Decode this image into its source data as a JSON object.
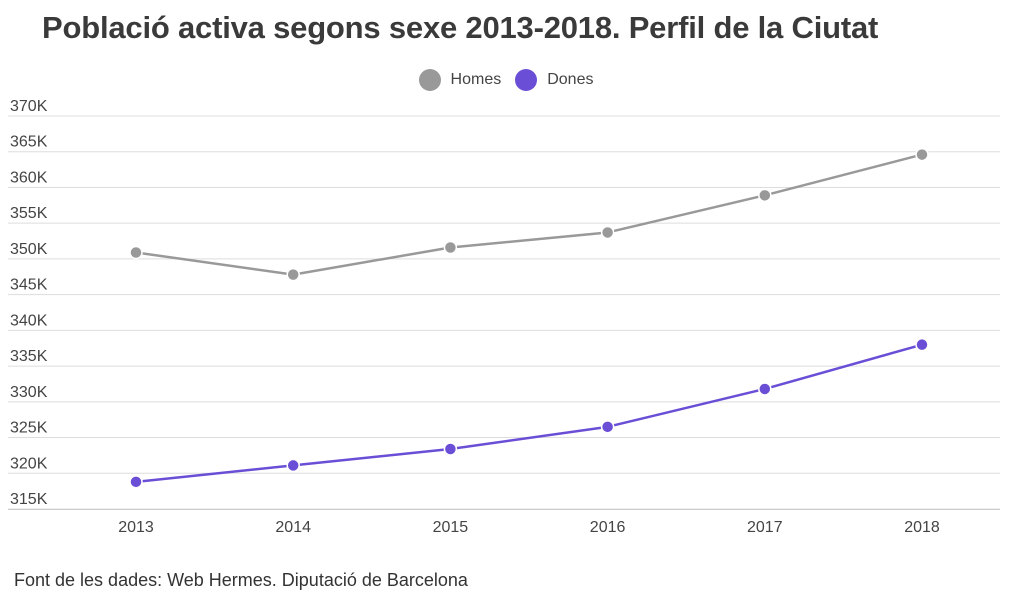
{
  "title": "Població activa segons sexe 2013-2018. Perfil de la Ciutat",
  "source": "Font de les dades: Web Hermes. Diputació de Barcelona",
  "colors": {
    "homes": "#999999",
    "dones": "#6a4fd6",
    "grid": "#dddddd",
    "text": "#444444"
  },
  "chart_data": {
    "type": "line",
    "title": "Població activa segons sexe 2013-2018. Perfil de la Ciutat",
    "xlabel": "",
    "ylabel": "",
    "x": [
      "2013",
      "2014",
      "2015",
      "2016",
      "2017",
      "2018"
    ],
    "series": [
      {
        "name": "Homes",
        "color": "#999999",
        "values": [
          350900,
          347800,
          351600,
          353700,
          358900,
          364600
        ]
      },
      {
        "name": "Dones",
        "color": "#6a4fd6",
        "values": [
          318800,
          321100,
          323400,
          326500,
          331800,
          338000
        ]
      }
    ],
    "ylim": [
      313000,
      372000
    ],
    "y_ticks": [
      {
        "value": 370000,
        "label": "370K"
      },
      {
        "value": 365000,
        "label": "365K"
      },
      {
        "value": 360000,
        "label": "360K"
      },
      {
        "value": 355000,
        "label": "355K"
      },
      {
        "value": 350000,
        "label": "350K"
      },
      {
        "value": 345000,
        "label": "345K"
      },
      {
        "value": 340000,
        "label": "340K"
      },
      {
        "value": 335000,
        "label": "335K"
      },
      {
        "value": 330000,
        "label": "330K"
      },
      {
        "value": 325000,
        "label": "325K"
      },
      {
        "value": 320000,
        "label": "320K"
      },
      {
        "value": 315000,
        "label": "315K"
      }
    ],
    "grid": true,
    "legend": "top-center"
  }
}
